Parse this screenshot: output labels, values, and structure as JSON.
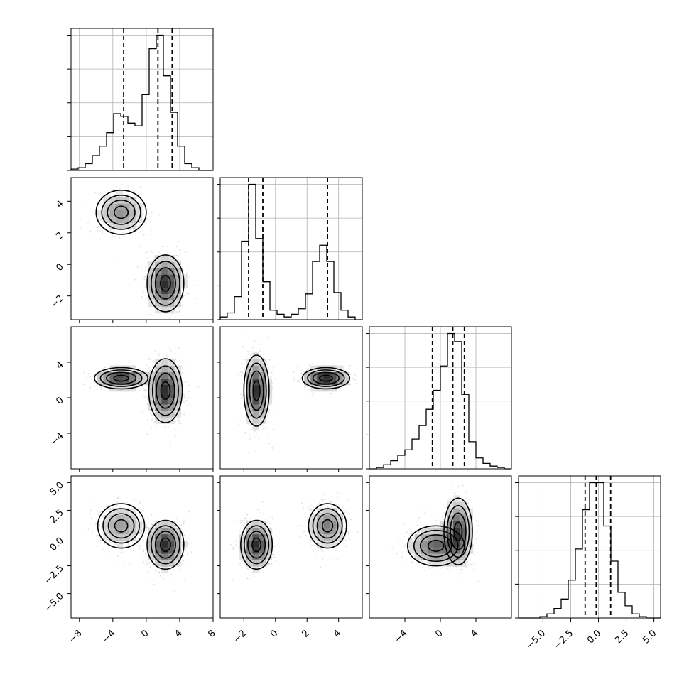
{
  "chart_data": {
    "type": "corner",
    "title": "",
    "grid": true,
    "quantiles_shown": [
      0.16,
      0.5,
      0.84
    ],
    "params": [
      {
        "range": [
          -9,
          8
        ],
        "xticks": [
          -8,
          -4,
          0,
          4,
          8
        ],
        "xtick_labels": [
          "−8",
          "−4",
          "0",
          "4",
          "8"
        ]
      },
      {
        "range": [
          -3.5,
          5.5
        ],
        "xticks": [
          -2,
          0,
          2,
          4
        ],
        "xtick_labels": [
          "−2",
          "0",
          "2",
          "4"
        ],
        "yticks": [
          4,
          2,
          0,
          -2
        ],
        "ytick_labels": [
          "4",
          "2",
          "0",
          "−2"
        ]
      },
      {
        "range": [
          -8,
          8
        ],
        "xticks": [
          -4,
          0,
          4
        ],
        "xtick_labels": [
          "−4",
          "0",
          "4"
        ],
        "yticks": [
          4,
          0,
          -4
        ],
        "ytick_labels": [
          "4",
          "0",
          "−4"
        ]
      },
      {
        "range": [
          -7.2,
          5.6
        ],
        "xticks": [
          -5.0,
          -2.5,
          0.0,
          2.5,
          5.0
        ],
        "xtick_labels": [
          "−5.0",
          "−2.5",
          "0.0",
          "2.5",
          "5.0"
        ],
        "yticks": [
          5.0,
          2.5,
          0.0,
          -2.5,
          -5.0
        ],
        "ytick_labels": [
          "5.0",
          "2.5",
          "0.0",
          "−2.5",
          "−5.0"
        ]
      }
    ],
    "histograms": [
      {
        "param": 0,
        "bin_edges": [
          -9,
          -8.15,
          -7.3,
          -6.45,
          -5.6,
          -4.75,
          -3.9,
          -3.05,
          -2.2,
          -1.35,
          -0.5,
          0.35,
          1.2,
          2.05,
          2.9,
          3.75,
          4.6,
          5.45,
          6.3,
          7.15,
          8
        ],
        "counts": [
          1,
          2,
          5,
          11,
          18,
          28,
          42,
          40,
          35,
          33,
          56,
          90,
          100,
          70,
          43,
          18,
          5,
          2,
          0,
          0
        ],
        "quantiles": [
          -2.7,
          1.4,
          3.1
        ]
      },
      {
        "param": 1,
        "bin_edges": [
          -3.5,
          -3.05,
          -2.6,
          -2.15,
          -1.7,
          -1.25,
          -0.8,
          -0.35,
          0.1,
          0.55,
          1.0,
          1.45,
          1.9,
          2.35,
          2.8,
          3.25,
          3.7,
          4.15,
          4.6,
          5.05,
          5.5
        ],
        "counts": [
          2,
          5,
          17,
          58,
          100,
          60,
          28,
          7,
          4,
          2,
          4,
          8,
          19,
          43,
          55,
          43,
          20,
          7,
          2,
          0
        ],
        "quantiles": [
          -1.7,
          -0.8,
          3.3
        ]
      },
      {
        "param": 2,
        "bin_edges": [
          -8,
          -7.2,
          -6.4,
          -5.6,
          -4.8,
          -4.0,
          -3.2,
          -2.4,
          -1.6,
          -0.8,
          0,
          0.8,
          1.6,
          2.4,
          3.2,
          4.0,
          4.8,
          5.6,
          6.4,
          7.2,
          8
        ],
        "counts": [
          0,
          1,
          3,
          6,
          10,
          14,
          22,
          32,
          44,
          58,
          76,
          100,
          94,
          55,
          20,
          8,
          4,
          2,
          1,
          0
        ],
        "quantiles": [
          -0.9,
          1.4,
          2.7
        ]
      },
      {
        "param": 3,
        "bin_edges": [
          -7.2,
          -6.56,
          -5.92,
          -5.28,
          -4.64,
          -4.0,
          -3.36,
          -2.72,
          -2.08,
          -1.44,
          -0.8,
          -0.16,
          0.48,
          1.12,
          1.76,
          2.4,
          3.04,
          3.68,
          4.32,
          4.96,
          5.6
        ],
        "counts": [
          0,
          0,
          0,
          1,
          3,
          7,
          14,
          28,
          51,
          80,
          100,
          100,
          68,
          42,
          19,
          9,
          3,
          1,
          0,
          0
        ],
        "quantiles": [
          -1.2,
          -0.2,
          1.1
        ]
      }
    ],
    "density_panels": [
      {
        "x_param": 0,
        "y_param": 1,
        "blobs": [
          {
            "cx": -3.0,
            "cy": 3.3,
            "sx": 1.5,
            "sy": 0.7,
            "weight": 0.35
          },
          {
            "cx": 2.3,
            "cy": -1.2,
            "sx": 1.1,
            "sy": 0.9,
            "weight": 0.65
          }
        ]
      },
      {
        "x_param": 0,
        "y_param": 2,
        "blobs": [
          {
            "cx": -3.0,
            "cy": 2.2,
            "sx": 1.6,
            "sy": 0.6,
            "weight": 0.35
          },
          {
            "cx": 2.3,
            "cy": 0.8,
            "sx": 1.0,
            "sy": 1.8,
            "weight": 0.65
          }
        ]
      },
      {
        "x_param": 1,
        "y_param": 2,
        "blobs": [
          {
            "cx": -1.2,
            "cy": 0.8,
            "sx": 0.4,
            "sy": 2.0,
            "weight": 0.6
          },
          {
            "cx": 3.2,
            "cy": 2.2,
            "sx": 0.75,
            "sy": 0.6,
            "weight": 0.4
          }
        ]
      },
      {
        "x_param": 0,
        "y_param": 3,
        "blobs": [
          {
            "cx": -3.0,
            "cy": 1.1,
            "sx": 1.4,
            "sy": 1.0,
            "weight": 0.35
          },
          {
            "cx": 2.3,
            "cy": -0.6,
            "sx": 1.1,
            "sy": 1.1,
            "weight": 0.65
          }
        ]
      },
      {
        "x_param": 1,
        "y_param": 3,
        "blobs": [
          {
            "cx": -1.2,
            "cy": -0.6,
            "sx": 0.5,
            "sy": 1.1,
            "weight": 0.6
          },
          {
            "cx": 3.3,
            "cy": 1.1,
            "sx": 0.6,
            "sy": 1.0,
            "weight": 0.4
          }
        ]
      },
      {
        "x_param": 2,
        "y_param": 3,
        "blobs": [
          {
            "cx": -0.5,
            "cy": -0.7,
            "sx": 1.6,
            "sy": 0.9,
            "weight": 0.5
          },
          {
            "cx": 2.0,
            "cy": 0.6,
            "sx": 0.8,
            "sy": 1.5,
            "weight": 0.5
          }
        ]
      }
    ]
  }
}
